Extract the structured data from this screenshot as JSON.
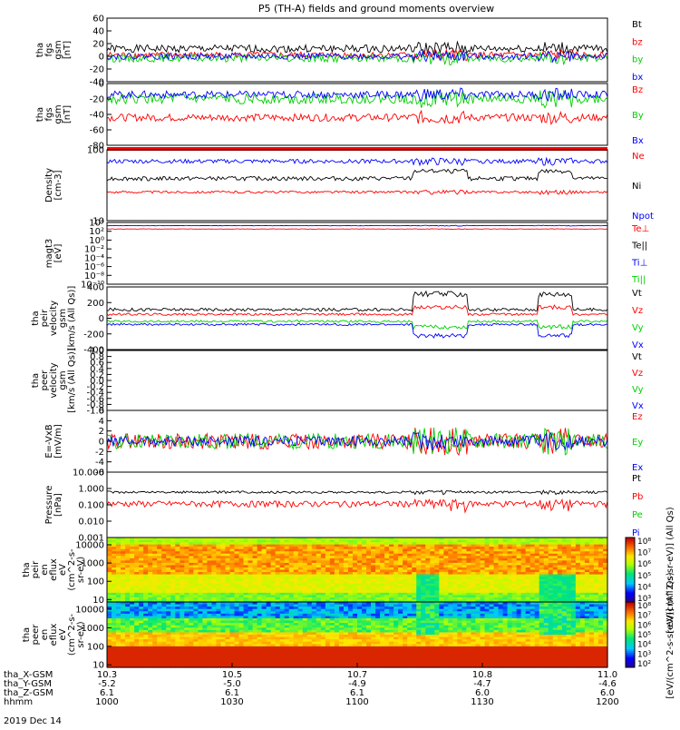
{
  "title": "P5 (TH-A) fields and ground moments overview",
  "footer_date": "2019 Dec 14",
  "colors": {
    "black": "#000000",
    "red": "#ff0000",
    "green": "#00d000",
    "blue": "#0000ff"
  },
  "x_axis": {
    "rows": [
      {
        "label": "tha_X-GSM",
        "values": [
          "10.3",
          "10.5",
          "10.7",
          "10.8",
          "11.0"
        ]
      },
      {
        "label": "tha_Y-GSM",
        "values": [
          "-5.2",
          "-5.0",
          "-4.9",
          "-4.7",
          "-4.6"
        ]
      },
      {
        "label": "tha_Z-GSM",
        "values": [
          "6.1",
          "6.1",
          "6.1",
          "6.0",
          "6.0"
        ]
      },
      {
        "label": "hhmm",
        "values": [
          "1000",
          "1030",
          "1100",
          "1130",
          "1200"
        ]
      }
    ],
    "hours": [
      10.0,
      10.5,
      11.0,
      11.5,
      12.0
    ]
  },
  "chart_data": [
    {
      "id": "p1",
      "type": "line",
      "ylabel": [
        "tha",
        "fgs",
        "gsm",
        "[nT]"
      ],
      "ylim": [
        -40,
        60
      ],
      "yticks": [
        "60",
        "40",
        "20",
        "0",
        "-20",
        "-40"
      ],
      "legend": [
        {
          "name": "Bt",
          "color": "#000000"
        },
        {
          "name": "bz",
          "color": "#ff0000"
        },
        {
          "name": "by",
          "color": "#00d000"
        },
        {
          "name": "bx",
          "color": "#0000ff"
        }
      ],
      "series": [
        {
          "name": "Bt",
          "base": 12,
          "amp": 6
        },
        {
          "name": "bz",
          "base": 2,
          "amp": 5
        },
        {
          "name": "by",
          "base": -3,
          "amp": 6
        },
        {
          "name": "bx",
          "base": 0,
          "amp": 5
        }
      ]
    },
    {
      "id": "p2",
      "type": "line",
      "ylabel": [
        "tha",
        "fgs",
        "gsm",
        "[nT]"
      ],
      "ylim": [
        -90,
        10
      ],
      "yticks": [
        "0",
        "-20",
        "-40",
        "-60",
        "-80"
      ],
      "legend": [
        {
          "name": "Bz",
          "color": "#ff0000"
        },
        {
          "name": "By",
          "color": "#00d000"
        },
        {
          "name": "Bx",
          "color": "#0000ff"
        }
      ],
      "series": [
        {
          "name": "Bz",
          "base": -45,
          "amp": 6
        },
        {
          "name": "By",
          "base": -15,
          "amp": 8
        },
        {
          "name": "Bx",
          "base": -8,
          "amp": 6
        }
      ]
    },
    {
      "id": "p3",
      "type": "line",
      "log": true,
      "ylabel": [
        "Density",
        "[cm-3]"
      ],
      "ylim": [
        1,
        300
      ],
      "yticks": [
        "100",
        "10"
      ],
      "legend": [
        {
          "name": "Ne",
          "color": "#ff0000"
        },
        {
          "name": "Ni",
          "color": "#000000"
        },
        {
          "name": "Npot",
          "color": "#0000ff"
        }
      ],
      "series": [
        {
          "name": "Ne",
          "base": 10,
          "amp": 1
        },
        {
          "name": "Ni",
          "base": 30,
          "amp": 5
        },
        {
          "name": "Npot",
          "base": 120,
          "amp": 20
        }
      ]
    },
    {
      "id": "p4",
      "type": "line",
      "log": true,
      "ylabel": [
        "magt3",
        "[eV]"
      ],
      "ylim": [
        1e-12,
        10000.0
      ],
      "yticks": [
        "10⁴",
        "10²",
        "10⁰",
        "10⁻²",
        "10⁻⁴",
        "10⁻⁶",
        "10⁻⁸",
        "10⁻¹⁰"
      ],
      "legend": [
        {
          "name": "Te⊥",
          "color": "#ff0000"
        },
        {
          "name": "Te||",
          "color": "#000000"
        },
        {
          "name": "Ti⊥",
          "color": "#0000ff"
        },
        {
          "name": "Ti||",
          "color": "#00d000"
        }
      ],
      "series": [
        {
          "name": "Te",
          "base": 200,
          "amp": 20
        },
        {
          "name": "Ti",
          "base": 1500,
          "amp": 200
        }
      ]
    },
    {
      "id": "p5",
      "type": "line",
      "ylabel": [
        "tha",
        "peir",
        "velocity",
        "gsm",
        "[km/s (All Qs)]"
      ],
      "ylim": [
        -400,
        400
      ],
      "yticks": [
        "400",
        "200",
        "0",
        "-200",
        "-400"
      ],
      "legend": [
        {
          "name": "Vt",
          "color": "#000000"
        },
        {
          "name": "Vz",
          "color": "#ff0000"
        },
        {
          "name": "Vy",
          "color": "#00d000"
        },
        {
          "name": "Vx",
          "color": "#0000ff"
        }
      ],
      "series": [
        {
          "name": "Vt",
          "base": 110,
          "amp": 20
        },
        {
          "name": "Vz",
          "base": 50,
          "amp": 15
        },
        {
          "name": "Vy",
          "base": -40,
          "amp": 15
        },
        {
          "name": "Vx",
          "base": -80,
          "amp": 15
        }
      ]
    },
    {
      "id": "p6",
      "type": "line",
      "ylabel": [
        "tha",
        "peer",
        "velocity",
        "gsm",
        "[km/s (All Qs)]"
      ],
      "ylim": [
        -1,
        1
      ],
      "yticks": [
        "1.0",
        "0.8",
        "0.6",
        "0.4",
        "0.2",
        "0.0",
        "-0.2",
        "-0.4",
        "-0.6",
        "-0.8",
        "-1.0"
      ],
      "legend": [
        {
          "name": "Vt",
          "color": "#000000"
        },
        {
          "name": "Vz",
          "color": "#ff0000"
        },
        {
          "name": "Vy",
          "color": "#00d000"
        },
        {
          "name": "Vx",
          "color": "#0000ff"
        }
      ],
      "series": []
    },
    {
      "id": "p7",
      "type": "line",
      "ylabel": [
        "E=-VxB",
        "[mV/m]"
      ],
      "ylim": [
        -6,
        6
      ],
      "yticks": [
        "6",
        "4",
        "2",
        "0",
        "-2",
        "-4",
        "-6"
      ],
      "legend": [
        {
          "name": "Ez",
          "color": "#ff0000"
        },
        {
          "name": "Ey",
          "color": "#00d000"
        },
        {
          "name": "Ex",
          "color": "#0000ff"
        }
      ],
      "series": [
        {
          "name": "Ez",
          "base": 0,
          "amp": 1.5
        },
        {
          "name": "Ey",
          "base": 0,
          "amp": 1.5
        },
        {
          "name": "Ex",
          "base": 0,
          "amp": 1
        }
      ]
    },
    {
      "id": "p8",
      "type": "line",
      "log": true,
      "ylabel": [
        "Pressure",
        "[nPa]"
      ],
      "ylim": [
        0.001,
        10
      ],
      "yticks": [
        "10.000",
        "1.000",
        "0.100",
        "0.010",
        "0.001"
      ],
      "legend": [
        {
          "name": "Pt",
          "color": "#000000"
        },
        {
          "name": "Pb",
          "color": "#ff0000"
        },
        {
          "name": "Pe",
          "color": "#00d000"
        },
        {
          "name": "Pi",
          "color": "#0000ff"
        }
      ],
      "series": [
        {
          "name": "Pt",
          "base": 0.6,
          "amp": 0.1
        },
        {
          "name": "Pb",
          "base": 0.12,
          "amp": 0.05
        }
      ]
    },
    {
      "id": "p9",
      "type": "heatmap",
      "log": true,
      "ylabel": [
        "tha",
        "peir",
        "en",
        "eflux",
        "eV",
        "(cm^2-s-",
        "sr-eV)"
      ],
      "ylim": [
        5,
        25000
      ],
      "yticks": [
        "10000",
        "1000",
        "100",
        "10"
      ],
      "colorbar_ticks": [
        "10⁸",
        "10⁷",
        "10⁶",
        "10⁵",
        "10⁴",
        "10³"
      ]
    },
    {
      "id": "p10",
      "type": "heatmap",
      "log": true,
      "ylabel": [
        "tha",
        "peer",
        "en",
        "eflux",
        "eV",
        "(cm^2-s-",
        "sr-eV)"
      ],
      "ylim": [
        5,
        25000
      ],
      "yticks": [
        "10000",
        "1000",
        "100",
        "10"
      ],
      "colorbar_ticks": [
        "10⁸",
        "10⁷",
        "10⁶",
        "10⁵",
        "10⁴",
        "10³",
        "10²"
      ]
    }
  ],
  "colorbar_label": "[eV/(cm^2-s-sr-eV)] (All Qs)",
  "colorbar_label_upper": "[eV/(cm^2-s-sr-eV)] (All Qs)"
}
